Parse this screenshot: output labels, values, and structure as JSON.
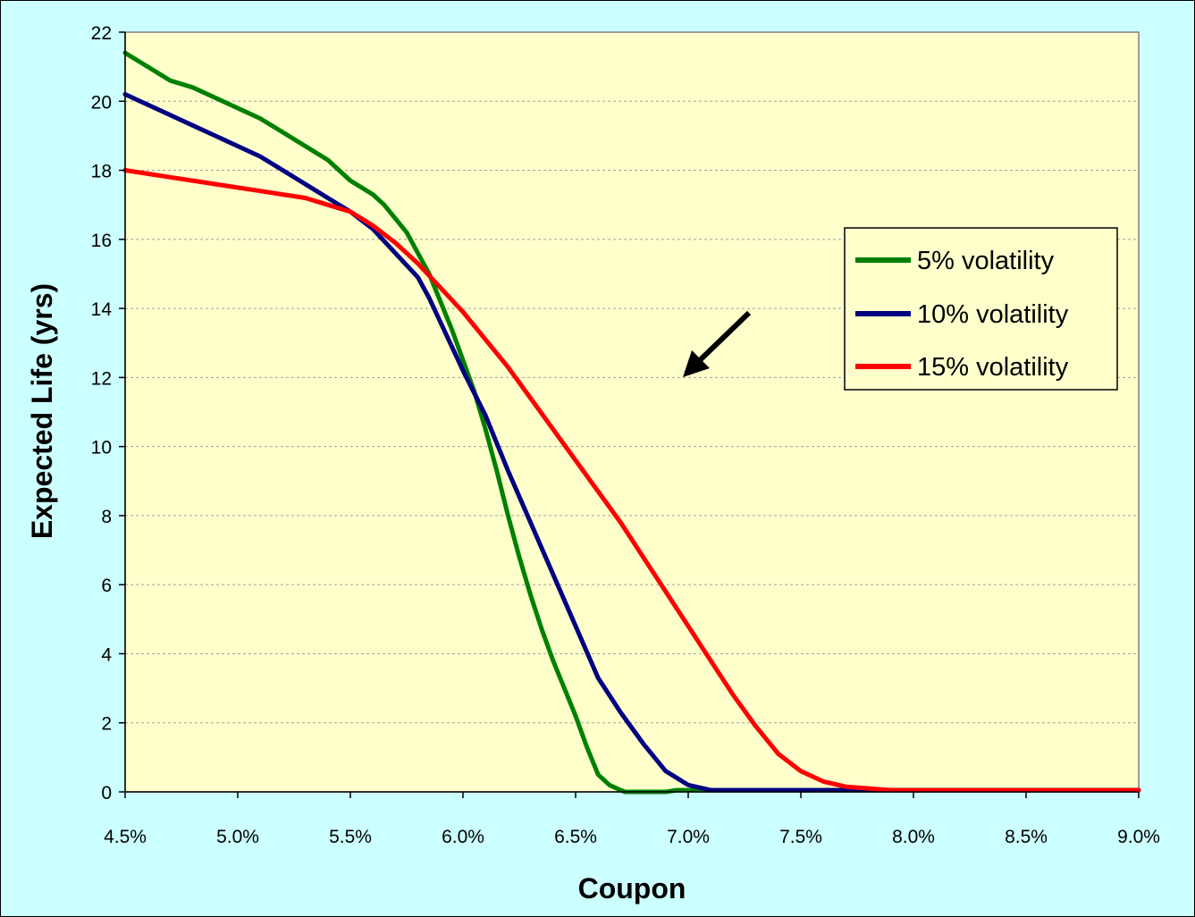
{
  "chart_data": {
    "type": "line",
    "xlabel": "Coupon",
    "ylabel": "Expected Life (yrs)",
    "xlim": [
      4.5,
      9.0
    ],
    "ylim": [
      0,
      22
    ],
    "x_ticks": [
      4.5,
      5.0,
      5.5,
      6.0,
      6.5,
      7.0,
      7.5,
      8.0,
      8.5,
      9.0
    ],
    "x_tick_labels": [
      "4.5%",
      "5.0%",
      "5.5%",
      "6.0%",
      "6.5%",
      "7.0%",
      "7.5%",
      "8.0%",
      "8.5%",
      "9.0%"
    ],
    "y_ticks": [
      0,
      2,
      4,
      6,
      8,
      10,
      12,
      14,
      16,
      18,
      20,
      22
    ],
    "y_tick_labels": [
      "0",
      "2",
      "4",
      "6",
      "8",
      "10",
      "12",
      "14",
      "16",
      "18",
      "20",
      "22"
    ],
    "grid": "horizontal dashed",
    "legend_position": "right",
    "plot_background": "#ffffcc",
    "frame_background": "#ccffff",
    "series": [
      {
        "name": "5% volatility",
        "color": "#008000",
        "x": [
          4.5,
          4.6,
          4.7,
          4.8,
          4.9,
          5.0,
          5.1,
          5.2,
          5.3,
          5.4,
          5.5,
          5.6,
          5.65,
          5.7,
          5.75,
          5.8,
          5.85,
          5.9,
          5.95,
          6.0,
          6.05,
          6.1,
          6.15,
          6.2,
          6.25,
          6.3,
          6.35,
          6.4,
          6.45,
          6.5,
          6.55,
          6.6,
          6.65,
          6.7,
          6.72,
          6.75,
          6.8,
          6.85,
          6.9,
          6.95,
          7.0,
          7.5,
          8.0,
          8.5,
          9.0
        ],
        "values": [
          21.4,
          21.0,
          20.6,
          20.4,
          20.1,
          19.8,
          19.5,
          19.1,
          18.7,
          18.3,
          17.7,
          17.3,
          17.0,
          16.6,
          16.2,
          15.6,
          15.0,
          14.2,
          13.4,
          12.5,
          11.6,
          10.5,
          9.3,
          8.0,
          6.8,
          5.7,
          4.7,
          3.8,
          3.0,
          2.2,
          1.3,
          0.5,
          0.2,
          0.05,
          0.0,
          0.0,
          0.0,
          0.0,
          0.0,
          0.05,
          0.05,
          0.05,
          0.05,
          0.05,
          0.05
        ]
      },
      {
        "name": "10% volatility",
        "color": "#000080",
        "x": [
          4.5,
          4.6,
          4.7,
          4.8,
          4.9,
          5.0,
          5.1,
          5.2,
          5.3,
          5.4,
          5.5,
          5.6,
          5.7,
          5.8,
          5.85,
          5.9,
          6.0,
          6.1,
          6.15,
          6.2,
          6.3,
          6.4,
          6.5,
          6.6,
          6.7,
          6.8,
          6.9,
          7.0,
          7.1,
          7.2,
          7.3,
          7.35,
          7.4,
          7.45,
          7.5,
          7.55,
          7.6,
          7.7,
          8.0,
          8.5,
          9.0
        ],
        "values": [
          20.2,
          19.9,
          19.6,
          19.3,
          19.0,
          18.7,
          18.4,
          18.0,
          17.6,
          17.2,
          16.8,
          16.3,
          15.6,
          14.9,
          14.3,
          13.6,
          12.2,
          10.9,
          10.1,
          9.3,
          7.8,
          6.3,
          4.8,
          3.3,
          2.3,
          1.4,
          0.6,
          0.2,
          0.05,
          0.05,
          0.05,
          0.05,
          0.05,
          0.05,
          0.05,
          0.05,
          0.05,
          0.05,
          0.05,
          0.05,
          0.05
        ]
      },
      {
        "name": "15% volatility",
        "color": "#ff0000",
        "x": [
          4.5,
          4.6,
          4.7,
          4.8,
          4.9,
          5.0,
          5.1,
          5.2,
          5.3,
          5.4,
          5.5,
          5.6,
          5.7,
          5.8,
          5.9,
          6.0,
          6.1,
          6.2,
          6.3,
          6.4,
          6.5,
          6.6,
          6.7,
          6.8,
          6.9,
          7.0,
          7.1,
          7.2,
          7.3,
          7.4,
          7.5,
          7.6,
          7.7,
          7.8,
          7.9,
          8.0,
          8.1,
          8.2,
          8.25,
          8.3,
          8.4,
          8.5,
          8.6,
          9.0
        ],
        "values": [
          18.0,
          17.9,
          17.8,
          17.7,
          17.6,
          17.5,
          17.4,
          17.3,
          17.2,
          17.0,
          16.8,
          16.4,
          15.9,
          15.3,
          14.6,
          13.9,
          13.1,
          12.3,
          11.4,
          10.5,
          9.6,
          8.7,
          7.8,
          6.8,
          5.8,
          4.8,
          3.8,
          2.8,
          1.9,
          1.1,
          0.6,
          0.3,
          0.15,
          0.1,
          0.05,
          0.05,
          0.05,
          0.05,
          0.05,
          0.05,
          0.05,
          0.05,
          0.05,
          0.05
        ]
      }
    ],
    "annotations": [
      {
        "type": "arrow",
        "direction": "down-left",
        "color": "#000000"
      }
    ]
  }
}
